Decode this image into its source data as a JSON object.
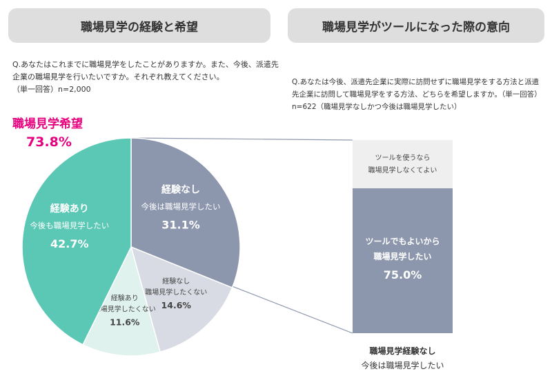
{
  "headers": {
    "left": "職場見学の経験と希望",
    "right": "職場見学がツールになった際の意向"
  },
  "questions": {
    "left_line1": "Q.あなたはこれまでに職場見学をしたことがありますか。また、今後、派遣先",
    "left_line2": "企業の職場見学を行いたいですか。それぞれ教えてください。",
    "left_sub": "（単一回答）n=2,000",
    "right_line1": "Q.あなたは今後、派遣先企業に実際に訪問せずに職場見学をする方法と派遣",
    "right_line2": "先企業に訪問して職場見学をする方法、どちらを希望しますか。（単一回答）",
    "right_sub": "n=622（職場見学なしかつ今後は職場見学したい）"
  },
  "hope": {
    "label": "職場見学希望",
    "value": "73.8%"
  },
  "bar_caption": {
    "bold": "職場見学経験なし",
    "normal": "今後は職場見学したい"
  },
  "colors": {
    "teal": "#5ac8b4",
    "slate": "#8c96ad",
    "light_slate": "#d8dbe3",
    "light_teal": "#dff2ee",
    "bar_light": "#efefef",
    "accent": "#e6007e"
  },
  "chart_data": [
    {
      "type": "pie",
      "start_angle_deg": 0,
      "direction": "clockwise",
      "slices": [
        {
          "line1": "経験なし",
          "line2": "今後は職場見学したい",
          "value": 31.1,
          "label": "31.1%",
          "color": "#8c96ad",
          "text_color": "#ffffff"
        },
        {
          "line1": "経験なし",
          "line2": "職場見学したくない",
          "value": 14.6,
          "label": "14.6%",
          "color": "#d8dbe3",
          "text_color": "#444444"
        },
        {
          "line1": "経験あり",
          "line2": "職場見学したくない",
          "value": 11.6,
          "label": "11.6%",
          "color": "#dff2ee",
          "text_color": "#444444"
        },
        {
          "line1": "経験あり",
          "line2": "今後も職場見学したい",
          "value": 42.7,
          "label": "42.7%",
          "color": "#5ac8b4",
          "text_color": "#ffffff"
        }
      ]
    },
    {
      "type": "bar",
      "stacked": true,
      "segments": [
        {
          "line1": "ツールを使うなら",
          "line2": "職場見学しなくてよい",
          "value": 25.0,
          "label": "",
          "color": "#efefef",
          "text_color": "#444444"
        },
        {
          "line1": "ツールでもよいから",
          "line2": "職場見学したい",
          "value": 75.0,
          "label": "75.0%",
          "color": "#8c96ad",
          "text_color": "#ffffff"
        }
      ]
    }
  ]
}
